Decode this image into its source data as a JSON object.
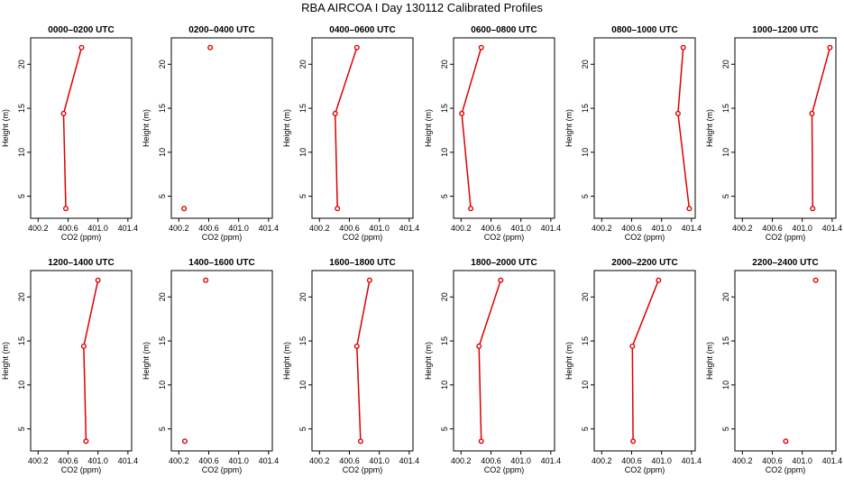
{
  "title": "RBA AIRCOA I  Day 130112  Calibrated Profiles",
  "colors": {
    "line": "#dd0000",
    "marker": "#dd0000",
    "axis": "#000000"
  },
  "chart_data": {
    "type": "line",
    "layout": "2x6 grid of small multiples",
    "xlabel": "CO2 (ppm)",
    "ylabel": "Height (m)",
    "xlim": [
      400.1,
      401.45
    ],
    "ylim": [
      2.5,
      23
    ],
    "xticks": [
      400.2,
      400.6,
      401.0,
      401.4
    ],
    "xtick_labels": [
      "400.2",
      "400.6",
      "401.0",
      "401.4"
    ],
    "yticks": [
      5,
      10,
      15,
      20
    ],
    "ytick_labels": [
      "5",
      "10",
      "15",
      "20"
    ],
    "panels": [
      {
        "title": "0000–0200 UTC",
        "points": [
          {
            "x": 400.78,
            "y": 21.9
          },
          {
            "x": 400.54,
            "y": 14.4
          },
          {
            "x": 400.57,
            "y": 3.6
          }
        ],
        "connected": true
      },
      {
        "title": "0200–0400 UTC",
        "points": [
          {
            "x": 400.62,
            "y": 21.9
          },
          {
            "x": 400.27,
            "y": 3.6
          }
        ],
        "connected": false
      },
      {
        "title": "0400–0600 UTC",
        "points": [
          {
            "x": 400.7,
            "y": 21.9
          },
          {
            "x": 400.41,
            "y": 14.4
          },
          {
            "x": 400.44,
            "y": 3.6
          }
        ],
        "connected": true
      },
      {
        "title": "0600–0800 UTC",
        "points": [
          {
            "x": 400.47,
            "y": 21.9
          },
          {
            "x": 400.21,
            "y": 14.4
          },
          {
            "x": 400.33,
            "y": 3.6
          }
        ],
        "connected": true
      },
      {
        "title": "0800–1000 UTC",
        "points": [
          {
            "x": 401.29,
            "y": 21.9
          },
          {
            "x": 401.22,
            "y": 14.4
          },
          {
            "x": 401.37,
            "y": 3.6
          }
        ],
        "connected": true
      },
      {
        "title": "1000–1200 UTC",
        "points": [
          {
            "x": 401.37,
            "y": 21.9
          },
          {
            "x": 401.13,
            "y": 14.4
          },
          {
            "x": 401.14,
            "y": 3.6
          }
        ],
        "connected": true
      },
      {
        "title": "1200–1400 UTC",
        "points": [
          {
            "x": 401.0,
            "y": 21.9
          },
          {
            "x": 400.81,
            "y": 14.4
          },
          {
            "x": 400.84,
            "y": 3.6
          }
        ],
        "connected": true
      },
      {
        "title": "1400–1600 UTC",
        "points": [
          {
            "x": 400.56,
            "y": 21.9
          },
          {
            "x": 400.28,
            "y": 3.6
          }
        ],
        "connected": false
      },
      {
        "title": "1600–1800 UTC",
        "points": [
          {
            "x": 400.87,
            "y": 21.9
          },
          {
            "x": 400.7,
            "y": 14.4
          },
          {
            "x": 400.75,
            "y": 3.6
          }
        ],
        "connected": true
      },
      {
        "title": "1800–2000 UTC",
        "points": [
          {
            "x": 400.73,
            "y": 21.9
          },
          {
            "x": 400.44,
            "y": 14.4
          },
          {
            "x": 400.47,
            "y": 3.6
          }
        ],
        "connected": true
      },
      {
        "title": "2000–2200 UTC",
        "points": [
          {
            "x": 400.96,
            "y": 21.9
          },
          {
            "x": 400.61,
            "y": 14.4
          },
          {
            "x": 400.62,
            "y": 3.6
          }
        ],
        "connected": true
      },
      {
        "title": "2200–2400 UTC",
        "points": [
          {
            "x": 401.18,
            "y": 21.9
          },
          {
            "x": 400.78,
            "y": 3.6
          }
        ],
        "connected": false
      }
    ]
  }
}
